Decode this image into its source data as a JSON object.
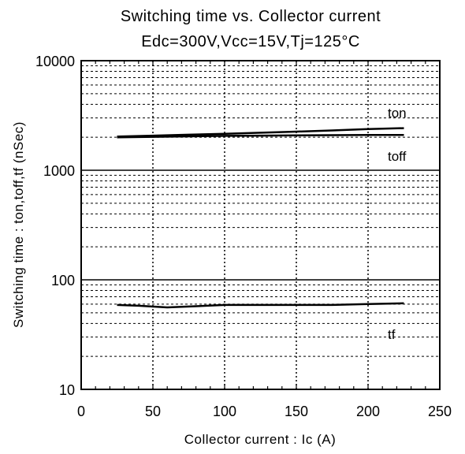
{
  "chart_data": {
    "type": "line",
    "title": "Switching time vs. Collector current",
    "subtitle": "Edc=300V,Vcc=15V,Tj=125°C",
    "xlabel": "Collector current : Ic (A)",
    "ylabel": "Switching time : ton,toff,tf (nSec)",
    "xlim": [
      0,
      250
    ],
    "ylim": [
      10,
      10000
    ],
    "yscale": "log",
    "grid": true,
    "x_ticks": [
      "0",
      "50",
      "100",
      "150",
      "200",
      "250"
    ],
    "y_ticks": [
      "10",
      "100",
      "1000",
      "10000"
    ],
    "series": [
      {
        "name": "ton",
        "x": [
          25,
          50,
          75,
          100,
          125,
          150,
          175,
          200,
          225
        ],
        "values": [
          2030,
          2070,
          2110,
          2150,
          2200,
          2250,
          2310,
          2380,
          2420
        ]
      },
      {
        "name": "toff",
        "x": [
          25,
          50,
          75,
          100,
          125,
          150,
          175,
          200,
          225
        ],
        "values": [
          2000,
          2020,
          2040,
          2060,
          2070,
          2080,
          2090,
          2100,
          2100
        ]
      },
      {
        "name": "tf",
        "x": [
          25,
          40,
          60,
          75,
          100,
          125,
          150,
          175,
          200,
          225
        ],
        "values": [
          59,
          58,
          56,
          57,
          59,
          59,
          59,
          59,
          60,
          61
        ]
      }
    ]
  }
}
